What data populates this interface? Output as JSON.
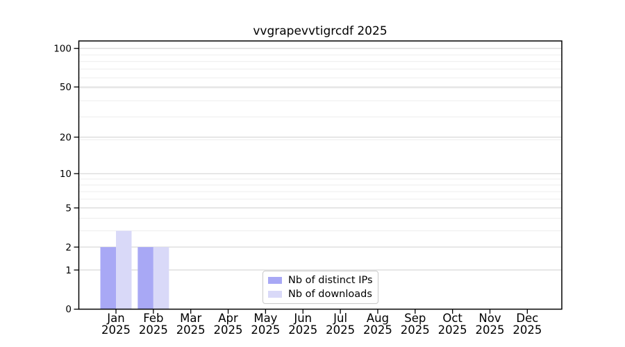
{
  "chart_data": {
    "type": "bar",
    "title": "vvgrapevvtigrcdf 2025",
    "categories": [
      "Jan",
      "Feb",
      "Mar",
      "Apr",
      "May",
      "Jun",
      "Jul",
      "Aug",
      "Sep",
      "Oct",
      "Nov",
      "Dec"
    ],
    "category_sublabel": "2025",
    "series": [
      {
        "name": "Nb of distinct IPs",
        "color": "#a8a8f5",
        "values": [
          2,
          2,
          0,
          0,
          0,
          0,
          0,
          0,
          0,
          0,
          0,
          0
        ]
      },
      {
        "name": "Nb of downloads",
        "color": "#d9d9f8",
        "values": [
          3,
          2,
          0,
          0,
          0,
          0,
          0,
          0,
          0,
          0,
          0,
          0
        ]
      }
    ],
    "y_axis": {
      "scale": "log10(1+y)",
      "ylim": [
        0,
        100
      ],
      "major_ticks": [
        0,
        1,
        2,
        5,
        10,
        20,
        50,
        100
      ],
      "minor_ticks": [
        3,
        4,
        6,
        7,
        8,
        9,
        19,
        29,
        39,
        49,
        59,
        69,
        79,
        89
      ]
    },
    "grid": {
      "major_color": "#cfcfcf",
      "minor_color": "#ededed"
    },
    "axis_color": "#000000",
    "text_color": "#000000",
    "legend": {
      "position": "bottom-center"
    }
  }
}
